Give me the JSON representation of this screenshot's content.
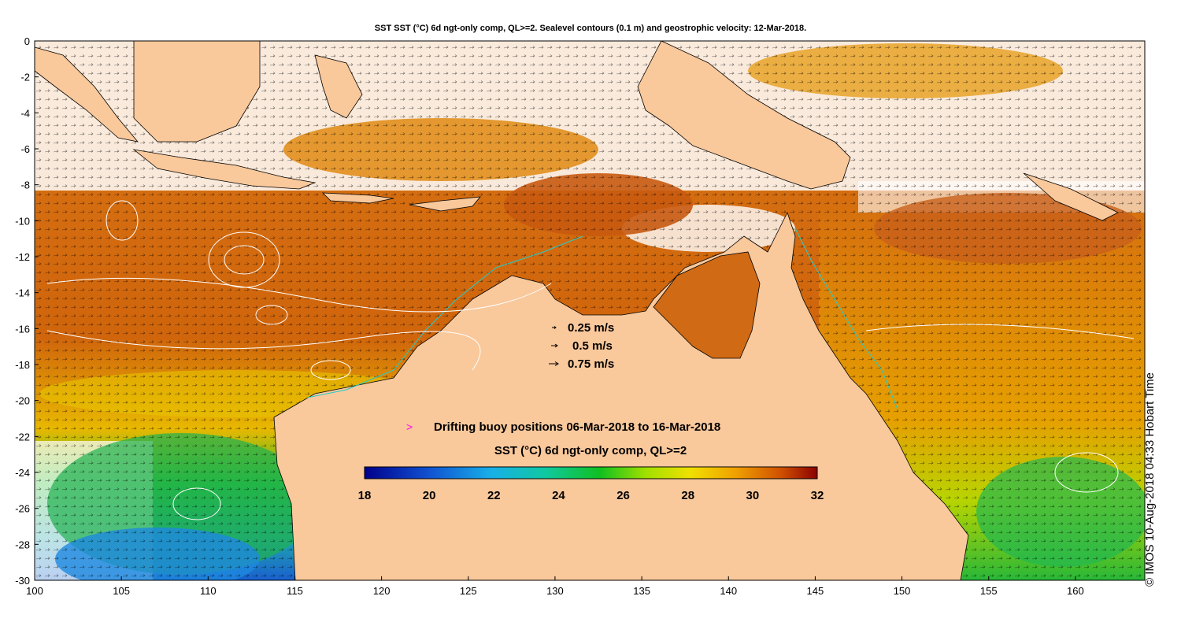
{
  "title": "SST SST (°C) 6d ngt-only comp, QL>=2. Sealevel contours (0.1 m) and geostrophic velocity: 12-Mar-2018.",
  "axes": {
    "x_ticks": [
      "100",
      "105",
      "110",
      "115",
      "120",
      "125",
      "130",
      "135",
      "140",
      "145",
      "150",
      "155",
      "160"
    ],
    "x_values": [
      100,
      105,
      110,
      115,
      120,
      125,
      130,
      135,
      140,
      145,
      150,
      155,
      160
    ],
    "y_ticks": [
      "0",
      "-2",
      "-4",
      "-6",
      "-8",
      "-10",
      "-12",
      "-14",
      "-16",
      "-18",
      "-20",
      "-22",
      "-24",
      "-26",
      "-28",
      "-30"
    ],
    "y_values": [
      0,
      -2,
      -4,
      -6,
      -8,
      -10,
      -12,
      -14,
      -16,
      -18,
      -20,
      -22,
      -24,
      -26,
      -28,
      -30
    ],
    "lon_range": [
      100,
      164
    ],
    "lat_range": [
      -30,
      0
    ]
  },
  "velocity_legend": [
    {
      "label": "0.25 m/s",
      "speed": 0.25
    },
    {
      "label": "0.5 m/s",
      "speed": 0.5
    },
    {
      "label": "0.75 m/s",
      "speed": 0.75
    }
  ],
  "buoy_legend": {
    "symbol": ">",
    "label": "Drifting buoy positions 06-Mar-2018 to 16-Mar-2018",
    "color": "#ff00ff"
  },
  "colorbar": {
    "title": "SST (°C) 6d ngt-only comp, QL>=2",
    "ticks": [
      "18",
      "20",
      "22",
      "24",
      "26",
      "28",
      "30",
      "32"
    ],
    "min": 18,
    "max": 32
  },
  "credit": "© IMOS 10-Aug-2018 04:33 Hobart Time",
  "colors": {
    "land": "#f9c89b",
    "coast": "#000000",
    "contour": "#ffffff",
    "shelf": "#22cccc",
    "sst_warm": "#d96a0a",
    "sst_hot": "#b0400a",
    "sst_mid": "#e8a800",
    "sst_cool": "#22bb22",
    "sst_cold": "#1e90e0"
  }
}
